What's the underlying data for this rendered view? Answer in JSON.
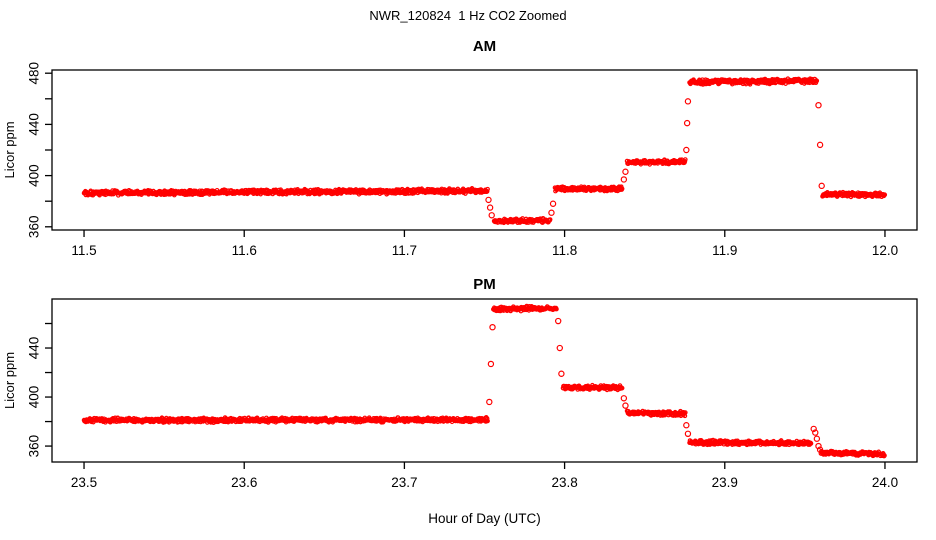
{
  "figure": {
    "title": "NWR_120824  1 Hz CO2 Zoomed",
    "xlabel": "Hour of Day (UTC)",
    "background": "#FFFFFF",
    "axis_color": "#000000",
    "point_color": "#FF0000"
  },
  "chart_data": [
    {
      "type": "scatter",
      "panel": "AM",
      "title": "AM",
      "ylabel": "Licor ppm",
      "marker": "open-circle",
      "color": "#FF0000",
      "sample_rate_hz": 1,
      "xlim": [
        11.48,
        12.02
      ],
      "ylim": [
        357.5,
        482.5
      ],
      "xticks": [
        11.5,
        11.6,
        11.7,
        11.8,
        11.9,
        12.0
      ],
      "yticks": [
        360,
        400,
        440,
        480
      ],
      "yticks_minor": [
        380,
        420,
        460
      ],
      "segments": [
        {
          "t0": 11.5,
          "t1": 11.752,
          "v0": 386.5,
          "v1": 388.0,
          "noise": 1.3
        },
        {
          "t0": 11.756,
          "t1": 11.791,
          "v0": 364.5,
          "v1": 365.0,
          "noise": 1.1
        },
        {
          "t0": 11.794,
          "t1": 11.836,
          "v0": 389.5,
          "v1": 389.5,
          "noise": 1.1
        },
        {
          "t0": 11.839,
          "t1": 11.8755,
          "v0": 410.5,
          "v1": 411.0,
          "noise": 1.1
        },
        {
          "t0": 11.878,
          "t1": 11.9575,
          "v0": 473.0,
          "v1": 474.0,
          "noise": 1.3
        },
        {
          "t0": 11.961,
          "t1": 12.0,
          "v0": 385.5,
          "v1": 385.0,
          "noise": 1.1
        }
      ],
      "transitions": [
        {
          "t": 11.7525,
          "v": 381
        },
        {
          "t": 11.7535,
          "v": 375
        },
        {
          "t": 11.7545,
          "v": 369
        },
        {
          "t": 11.7918,
          "v": 371
        },
        {
          "t": 11.7928,
          "v": 378
        },
        {
          "t": 11.837,
          "v": 397
        },
        {
          "t": 11.838,
          "v": 403
        },
        {
          "t": 11.876,
          "v": 420
        },
        {
          "t": 11.8765,
          "v": 441
        },
        {
          "t": 11.877,
          "v": 458
        },
        {
          "t": 11.9585,
          "v": 455
        },
        {
          "t": 11.9595,
          "v": 424
        },
        {
          "t": 11.9605,
          "v": 392
        }
      ]
    },
    {
      "type": "scatter",
      "panel": "PM",
      "title": "PM",
      "ylabel": "Licor ppm",
      "marker": "open-circle",
      "color": "#FF0000",
      "sample_rate_hz": 1,
      "xlim": [
        23.48,
        24.02
      ],
      "ylim": [
        347.0,
        480.0
      ],
      "xticks": [
        23.5,
        23.6,
        23.7,
        23.8,
        23.9,
        24.0
      ],
      "yticks": [
        360,
        400,
        440
      ],
      "yticks_minor": [
        380,
        420,
        460
      ],
      "segments": [
        {
          "t0": 23.5,
          "t1": 23.752,
          "v0": 381.0,
          "v1": 381.5,
          "noise": 1.2
        },
        {
          "t0": 23.7555,
          "t1": 23.795,
          "v0": 472.0,
          "v1": 472.5,
          "noise": 1.2
        },
        {
          "t0": 23.799,
          "t1": 23.836,
          "v0": 408.0,
          "v1": 407.5,
          "noise": 1.1
        },
        {
          "t0": 23.839,
          "t1": 23.8755,
          "v0": 387.0,
          "v1": 386.5,
          "noise": 1.1
        },
        {
          "t0": 23.878,
          "t1": 23.954,
          "v0": 363.0,
          "v1": 362.5,
          "noise": 1.2
        },
        {
          "t0": 23.96,
          "t1": 24.0,
          "v0": 354.5,
          "v1": 353.5,
          "noise": 1.1
        }
      ],
      "transitions": [
        {
          "t": 23.753,
          "v": 396
        },
        {
          "t": 23.754,
          "v": 427
        },
        {
          "t": 23.755,
          "v": 457
        },
        {
          "t": 23.796,
          "v": 462
        },
        {
          "t": 23.797,
          "v": 440
        },
        {
          "t": 23.798,
          "v": 419
        },
        {
          "t": 23.837,
          "v": 399
        },
        {
          "t": 23.838,
          "v": 393
        },
        {
          "t": 23.876,
          "v": 377
        },
        {
          "t": 23.877,
          "v": 370
        },
        {
          "t": 23.9555,
          "v": 374
        },
        {
          "t": 23.9565,
          "v": 371
        },
        {
          "t": 23.9575,
          "v": 366
        },
        {
          "t": 23.9585,
          "v": 360
        },
        {
          "t": 23.9595,
          "v": 357
        }
      ]
    }
  ]
}
